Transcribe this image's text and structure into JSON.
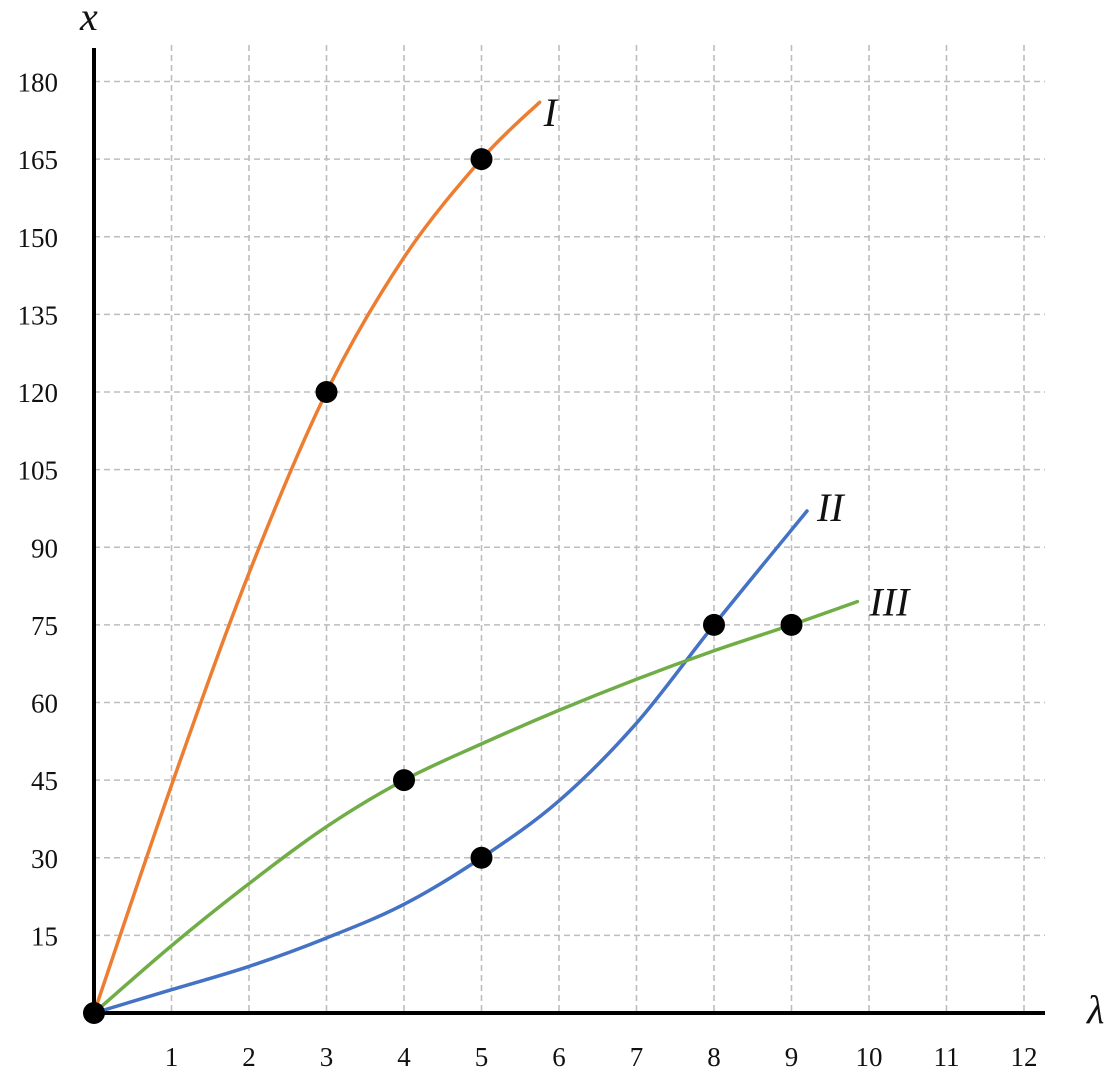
{
  "chart_data": {
    "type": "line",
    "title": "",
    "xlabel": "λ",
    "ylabel": "x",
    "xlim": [
      0,
      12.3
    ],
    "ylim": [
      0,
      185
    ],
    "x_ticks": [
      1,
      2,
      3,
      4,
      5,
      6,
      7,
      8,
      9,
      10,
      11,
      12
    ],
    "y_ticks": [
      15,
      30,
      45,
      60,
      75,
      90,
      105,
      120,
      135,
      150,
      165,
      180
    ],
    "grid": true,
    "legend": "none",
    "series": [
      {
        "name": "I",
        "color": "#ed7d31",
        "curve": [
          [
            0,
            0
          ],
          [
            1,
            44
          ],
          [
            2,
            85
          ],
          [
            3,
            120
          ],
          [
            4,
            146
          ],
          [
            5,
            165
          ],
          [
            5.75,
            176
          ]
        ],
        "points": [
          [
            0,
            0
          ],
          [
            3,
            120
          ],
          [
            5,
            165
          ]
        ]
      },
      {
        "name": "II",
        "color": "#4472c4",
        "curve": [
          [
            0,
            0
          ],
          [
            1,
            4.5
          ],
          [
            2,
            9
          ],
          [
            3,
            14.5
          ],
          [
            4,
            21
          ],
          [
            5,
            30
          ],
          [
            6,
            41
          ],
          [
            7,
            56
          ],
          [
            8,
            75
          ],
          [
            9.2,
            97
          ]
        ],
        "points": [
          [
            5,
            30
          ],
          [
            8,
            75
          ]
        ]
      },
      {
        "name": "III",
        "color": "#70ad47",
        "curve": [
          [
            0,
            0
          ],
          [
            1,
            13
          ],
          [
            2,
            25
          ],
          [
            3,
            36
          ],
          [
            4,
            45
          ],
          [
            5,
            52
          ],
          [
            6,
            58.5
          ],
          [
            7,
            64.5
          ],
          [
            8,
            70
          ],
          [
            9,
            75
          ],
          [
            9.85,
            79.5
          ]
        ],
        "points": [
          [
            4,
            45
          ],
          [
            9,
            75
          ]
        ]
      }
    ]
  }
}
